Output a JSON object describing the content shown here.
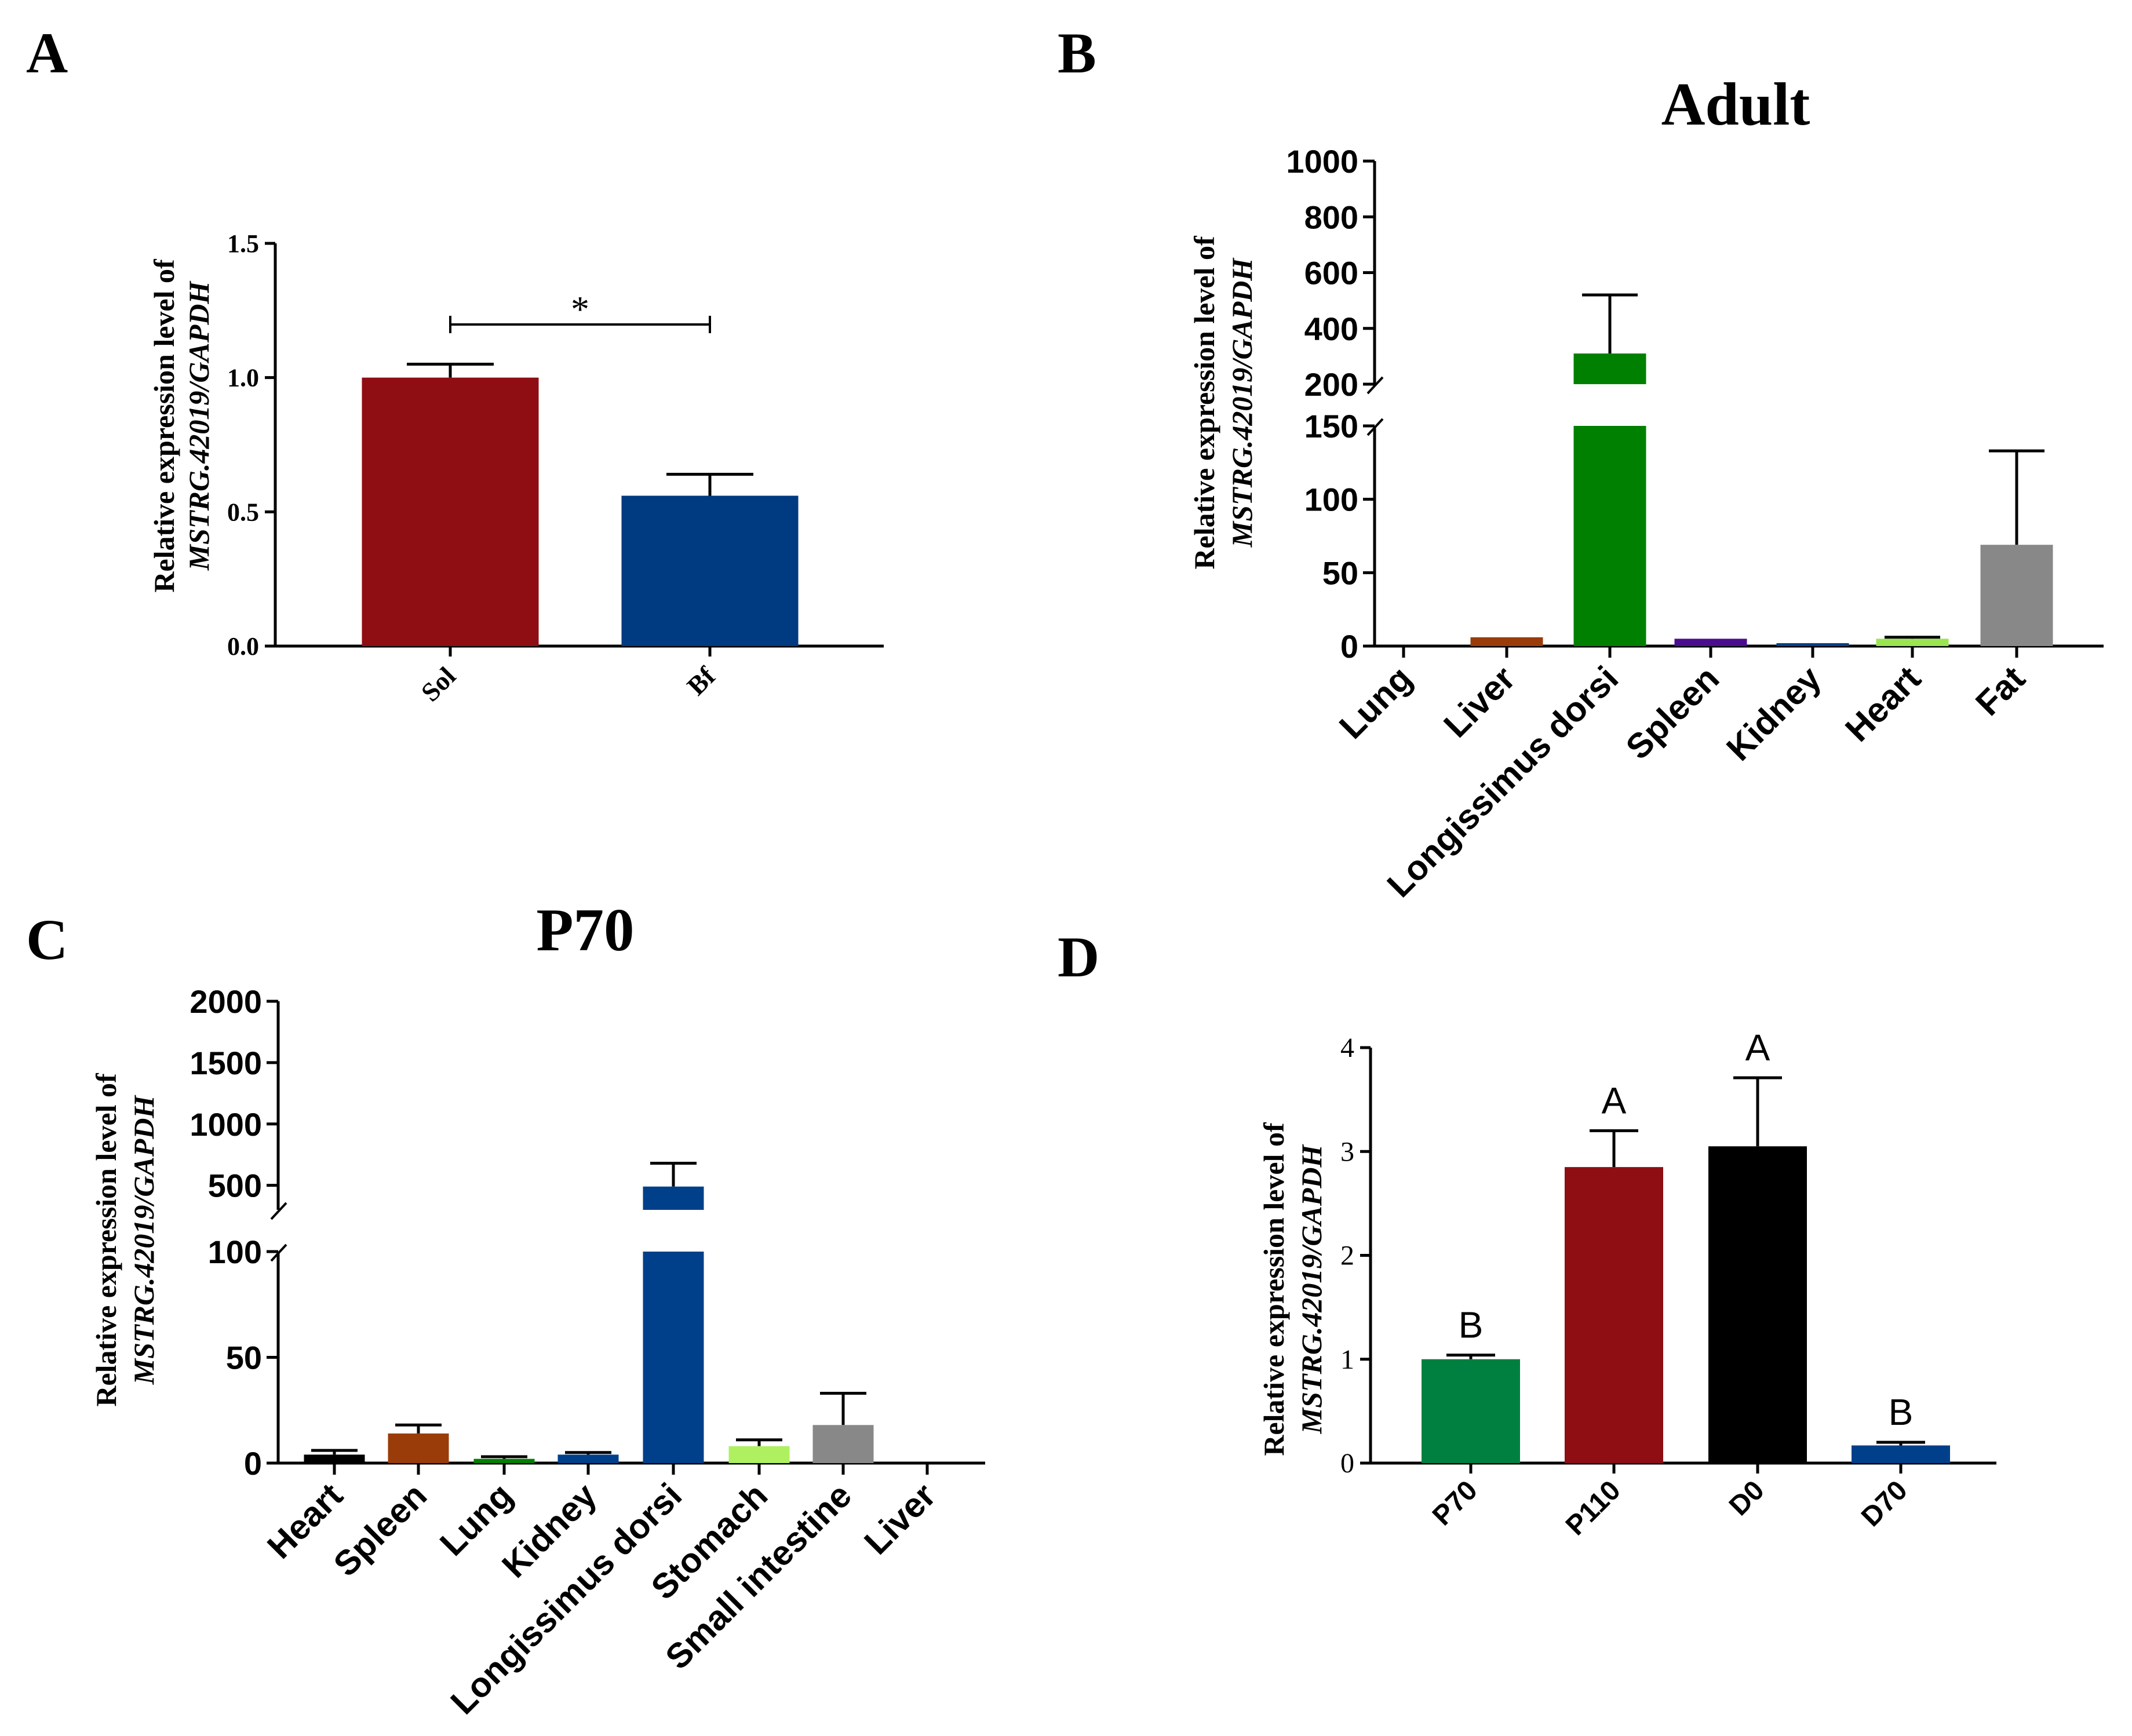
{
  "figure": {
    "ylabel_line1": "Relative expression level of",
    "ylabel_line2": "MSTRG.42019/GAPDH"
  },
  "chart_data": [
    {
      "panel": "A",
      "type": "bar",
      "title": "",
      "categories": [
        "Sol",
        "Bf"
      ],
      "values": [
        1.0,
        0.56
      ],
      "errors": [
        0.05,
        0.08
      ],
      "colors": [
        "#8e0e14",
        "#003a80"
      ],
      "ylim": [
        0,
        1.5
      ],
      "yticks": [
        0.0,
        0.5,
        1.0,
        1.5
      ],
      "ytick_labels": [
        "0.0",
        "0.5",
        "1.0",
        "1.5"
      ],
      "xlabel": "",
      "ylabel": "Relative expression level of MSTRG.42019/GAPDH",
      "significance": {
        "between": [
          "Sol",
          "Bf"
        ],
        "label": "*"
      }
    },
    {
      "panel": "B",
      "type": "bar",
      "title": "Adult",
      "categories": [
        "Lung",
        "Liver",
        "Longissimus dorsi",
        "Spleen",
        "Kidney",
        "Heart",
        "Fat"
      ],
      "values": [
        1,
        6,
        310,
        5,
        2,
        5,
        69
      ],
      "errors": [
        0,
        0,
        210,
        0,
        0,
        1,
        64
      ],
      "colors": [
        "#000000",
        "#9a3c0a",
        "#008000",
        "#4b0d8f",
        "#00408a",
        "#9ae550",
        "#888888"
      ],
      "axis_break": {
        "lower": [
          0,
          150
        ],
        "upper": [
          200,
          1000
        ]
      },
      "yticks_lower": [
        0,
        50,
        100,
        150
      ],
      "yticks_upper": [
        200,
        400,
        600,
        800,
        1000
      ],
      "xlabel": "",
      "ylabel": "Relative expression level of MSTRG.42019/GAPDH"
    },
    {
      "panel": "C",
      "type": "bar",
      "title": "P70",
      "categories": [
        "Heart",
        "Spleen",
        "Lung",
        "Kidney",
        "Longissimus dorsi",
        "Stomach",
        "Small intestine",
        "Liver"
      ],
      "values": [
        4,
        14,
        2,
        4,
        490,
        8,
        18,
        0
      ],
      "errors": [
        2,
        4,
        1,
        1,
        190,
        3,
        15,
        0
      ],
      "colors": [
        "#000000",
        "#9a3c0a",
        "#008000",
        "#00408a",
        "#00408a",
        "#aef060",
        "#888888",
        "#ffffff"
      ],
      "axis_break": {
        "lower": [
          0,
          100
        ],
        "upper": [
          300,
          2000
        ]
      },
      "yticks_lower": [
        0,
        50,
        100
      ],
      "yticks_upper": [
        500,
        1000,
        1500,
        2000
      ],
      "xlabel": "",
      "ylabel": "Relative expression level of MSTRG.42019/GAPDH"
    },
    {
      "panel": "D",
      "type": "bar",
      "title": "",
      "categories": [
        "P70",
        "P110",
        "D0",
        "D70"
      ],
      "values": [
        1.0,
        2.85,
        3.05,
        0.17
      ],
      "errors": [
        0.04,
        0.35,
        0.66,
        0.03
      ],
      "colors": [
        "#008040",
        "#8e0e14",
        "#000000",
        "#00408a"
      ],
      "ylim": [
        0,
        4
      ],
      "yticks": [
        0,
        1,
        2,
        3,
        4
      ],
      "significance_letters": [
        "B",
        "A",
        "A",
        "B"
      ],
      "xlabel": "",
      "ylabel": "Relative expression level of MSTRG.42019/GAPDH"
    }
  ]
}
